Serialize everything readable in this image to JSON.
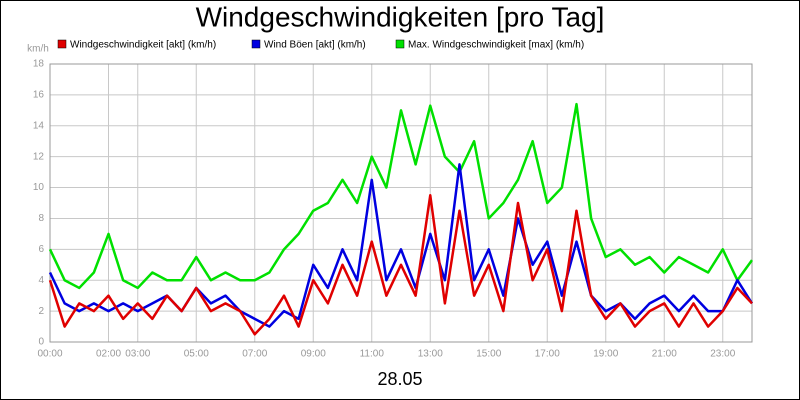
{
  "chart_data": {
    "type": "line",
    "title": "Windgeschwindigkeiten [pro Tag]",
    "x_label": "28.05",
    "y_unit": "km/h",
    "x": [
      0,
      0.5,
      1,
      1.5,
      2,
      2.5,
      3,
      3.5,
      4,
      4.5,
      5,
      5.5,
      6,
      6.5,
      7,
      7.5,
      8,
      8.5,
      9,
      9.5,
      10,
      10.5,
      11,
      11.5,
      12,
      12.5,
      13,
      13.5,
      14,
      14.5,
      15,
      15.5,
      16,
      16.5,
      17,
      17.5,
      18,
      18.5,
      19,
      19.5,
      20,
      20.5,
      21,
      21.5,
      22,
      22.5,
      23,
      23.5,
      24
    ],
    "series": [
      {
        "name": "Windgeschwindigkeit [akt] (km/h)",
        "color": "#e00000",
        "values": [
          4,
          1,
          2.5,
          2,
          3,
          1.5,
          2.5,
          1.5,
          3,
          2,
          3.5,
          2,
          2.5,
          2,
          0.5,
          1.5,
          3,
          1,
          4,
          2.5,
          5,
          3,
          6.5,
          3,
          5,
          3,
          9.5,
          2.5,
          8.5,
          3,
          5,
          2,
          9,
          4,
          6,
          2,
          8.5,
          3,
          1.5,
          2.5,
          1,
          2,
          2.5,
          1,
          2.5,
          1,
          2,
          3.5,
          2.5
        ]
      },
      {
        "name": "Wind Böen [akt] (km/h)",
        "color": "#0000e0",
        "values": [
          4.5,
          2.5,
          2,
          2.5,
          2,
          2.5,
          2,
          2.5,
          3,
          2,
          3.5,
          2.5,
          3,
          2,
          1.5,
          1,
          2,
          1.5,
          5,
          3.5,
          6,
          4,
          10.5,
          4,
          6,
          3.5,
          7,
          4,
          11.5,
          4,
          6,
          3,
          8,
          5,
          6.5,
          3,
          6.5,
          3,
          2,
          2.5,
          1.5,
          2.5,
          3,
          2,
          3,
          2,
          2,
          4,
          2.5
        ]
      },
      {
        "name": "Max. Windgeschwindigkeit [max] (km/h)",
        "color": "#00e000",
        "values": [
          6,
          4,
          3.5,
          4.5,
          7,
          4,
          3.5,
          4.5,
          4,
          4,
          5.5,
          4,
          4.5,
          4,
          4,
          4.5,
          6,
          7,
          8.5,
          9,
          10.5,
          9,
          12,
          10,
          15,
          11.5,
          15.3,
          12,
          11,
          13,
          8,
          9,
          10.5,
          13,
          9,
          10,
          15.4,
          8,
          5.5,
          6,
          5,
          5.5,
          4.5,
          5.5,
          5,
          4.5,
          6,
          4,
          5.3
        ]
      }
    ],
    "xlim": [
      0,
      24
    ],
    "xticks": [
      {
        "value": 0,
        "label": "00:00"
      },
      {
        "value": 2,
        "label": "02:00"
      },
      {
        "value": 3,
        "label": "03:00"
      },
      {
        "value": 5,
        "label": "05:00"
      },
      {
        "value": 7,
        "label": "07:00"
      },
      {
        "value": 9,
        "label": "09:00"
      },
      {
        "value": 11,
        "label": "11:00"
      },
      {
        "value": 13,
        "label": "13:00"
      },
      {
        "value": 15,
        "label": "15:00"
      },
      {
        "value": 17,
        "label": "17:00"
      },
      {
        "value": 19,
        "label": "19:00"
      },
      {
        "value": 21,
        "label": "21:00"
      },
      {
        "value": 23,
        "label": "23:00"
      }
    ],
    "ylim": [
      0,
      18
    ],
    "yticks": [
      0,
      2,
      4,
      6,
      8,
      10,
      12,
      14,
      16,
      18
    ],
    "grid": true
  }
}
